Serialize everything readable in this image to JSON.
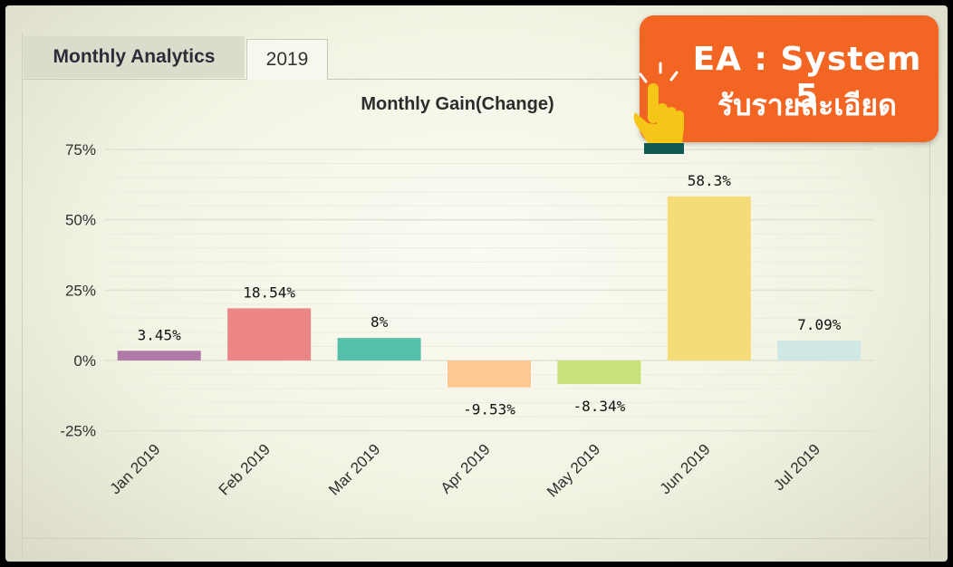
{
  "tabs": [
    {
      "label": "Monthly Analytics",
      "active": false
    },
    {
      "label": "2019",
      "active": true
    }
  ],
  "promo": {
    "line1": "EA : System 5",
    "line2": "รับรายละเอียด",
    "color": "#f36522",
    "icon": "pointing-hand-icon"
  },
  "chart_data": {
    "type": "bar",
    "title": "Monthly Gain(Change)",
    "xlabel": "",
    "ylabel": "",
    "categories": [
      "Jan 2019",
      "Feb 2019",
      "Mar 2019",
      "Apr 2019",
      "May 2019",
      "Jun 2019",
      "Jul 2019"
    ],
    "values": [
      3.45,
      18.54,
      8,
      -9.53,
      -8.34,
      58.3,
      7.09
    ],
    "data_labels": [
      "3.45%",
      "18.54%",
      "8%",
      "-9.53%",
      "-8.34%",
      "58.3%",
      "7.09%"
    ],
    "colors": [
      "#b07aa7",
      "#ec8686",
      "#55bfa9",
      "#ffc890",
      "#c8e27a",
      "#f6dc78",
      "#cfe8e6"
    ],
    "yticks": [
      75,
      50,
      25,
      0,
      -25
    ],
    "ytick_labels": [
      "75%",
      "50%",
      "25%",
      "0%",
      "-25%"
    ],
    "ylim": [
      -25,
      75
    ],
    "grid": true,
    "legend": "none"
  }
}
